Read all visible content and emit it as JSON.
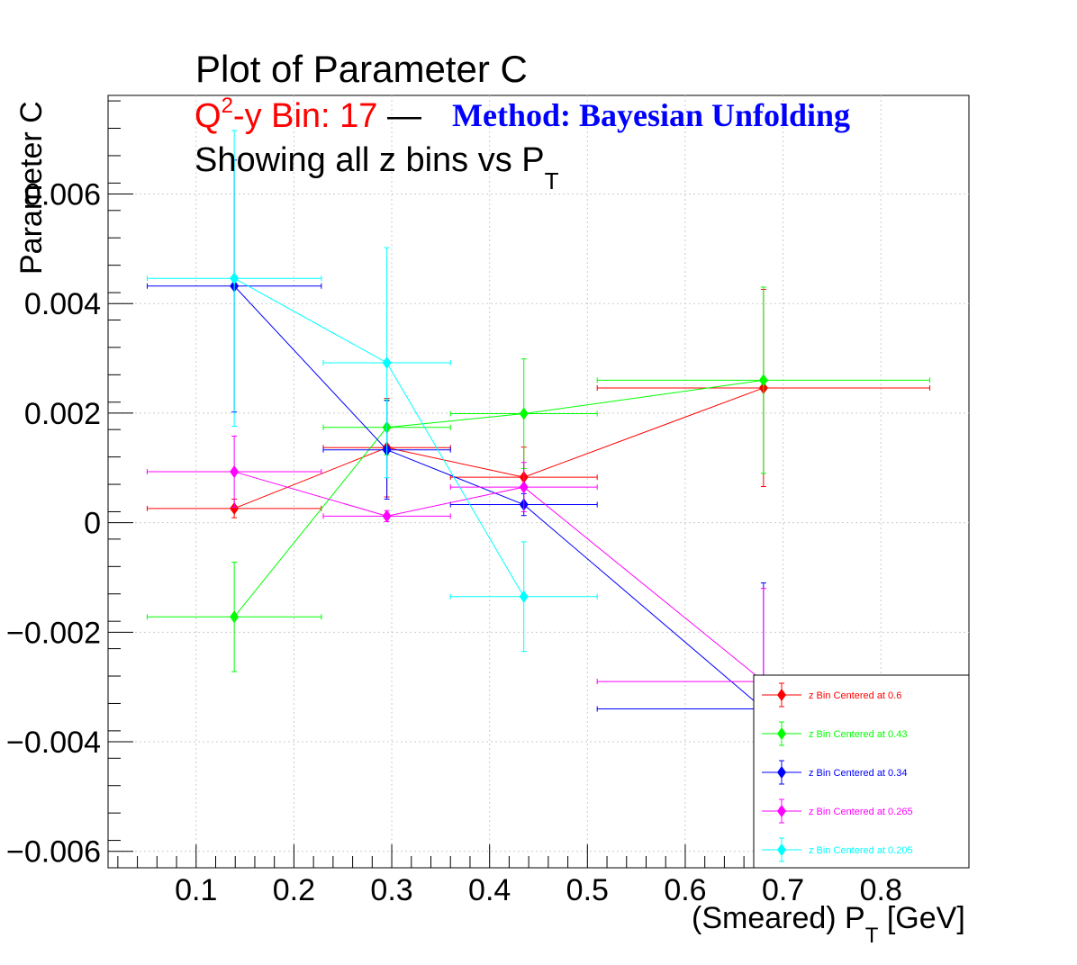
{
  "title": {
    "main": "Plot of Parameter C",
    "q2_prefix": "Q",
    "q2_sup": "2",
    "bin_text": "-y Bin: 17",
    "dash": "—",
    "method": "Method: Bayesian Unfolding",
    "showing": "Showing all z bins vs P",
    "showing_sub": "T"
  },
  "colors": {
    "bin_text": "#ff0000",
    "method": "#0000ff",
    "main": "#000000"
  },
  "axes": {
    "xlabel_pre": "(Smeared) P",
    "xlabel_sub": "T",
    "xlabel_post": " [GeV]",
    "ylabel": "Parameter C"
  },
  "chart_data": {
    "type": "scatter",
    "title": "Plot of Parameter C",
    "xlabel": "(Smeared) P_T [GeV]",
    "ylabel": "Parameter C",
    "xlim": [
      0.01,
      0.89
    ],
    "ylim": [
      -0.0063,
      0.0078
    ],
    "x_ticks": [
      0.1,
      0.2,
      0.3,
      0.4,
      0.5,
      0.6,
      0.7,
      0.8
    ],
    "x_tick_labels": [
      "0.1",
      "0.2",
      "0.3",
      "0.4",
      "0.5",
      "0.6",
      "0.7",
      "0.8"
    ],
    "y_ticks": [
      -0.006,
      -0.004,
      -0.002,
      0,
      0.002,
      0.004,
      0.006
    ],
    "y_tick_labels": [
      "−0.006",
      "−0.004",
      "−0.002",
      "0",
      "0.002",
      "0.004",
      "0.006"
    ],
    "grid": true,
    "legend_position": "bottom-right",
    "series": [
      {
        "name": "z Bin Centered at 0.6",
        "color": "#ff0000",
        "x": [
          0.139,
          0.295,
          0.435,
          0.68
        ],
        "xerr_low": [
          0.089,
          0.065,
          0.075,
          0.17
        ],
        "xerr_high": [
          0.089,
          0.065,
          0.075,
          0.17
        ],
        "y": [
          0.00026,
          0.00137,
          0.00083,
          0.00246
        ],
        "yerr": [
          0.00017,
          0.0009,
          0.00055,
          0.0018
        ]
      },
      {
        "name": "z Bin Centered at 0.43",
        "color": "#00ff00",
        "x": [
          0.139,
          0.295,
          0.435,
          0.68
        ],
        "xerr_low": [
          0.089,
          0.065,
          0.075,
          0.17
        ],
        "xerr_high": [
          0.089,
          0.065,
          0.075,
          0.17
        ],
        "y": [
          -0.00172,
          0.00174,
          0.00199,
          0.0026
        ],
        "yerr": [
          0.001,
          0.0005,
          0.001,
          0.0017
        ]
      },
      {
        "name": "z Bin Centered at 0.34",
        "color": "#0000ff",
        "x": [
          0.139,
          0.295,
          0.435,
          0.68
        ],
        "xerr_low": [
          0.089,
          0.065,
          0.075,
          0.17
        ],
        "xerr_high": [
          0.089,
          0.065,
          0.075,
          0.17
        ],
        "y": [
          0.00432,
          0.00133,
          0.00033,
          -0.0034
        ],
        "yerr": [
          0.0023,
          0.0009,
          0.0002,
          0.0023
        ]
      },
      {
        "name": "z Bin Centered at 0.265",
        "color": "#ff00ff",
        "x": [
          0.139,
          0.295,
          0.435,
          0.68
        ],
        "xerr_low": [
          0.089,
          0.065,
          0.075,
          0.17
        ],
        "xerr_high": [
          0.089,
          0.065,
          0.075,
          0.17
        ],
        "y": [
          0.00093,
          0.00012,
          0.00065,
          -0.0029
        ],
        "yerr": [
          0.00065,
          0.0001,
          0.00045,
          0.0017
        ]
      },
      {
        "name": "z Bin Centered at 0.205",
        "color": "#00ffff",
        "x": [
          0.139,
          0.295,
          0.435
        ],
        "xerr_low": [
          0.089,
          0.065,
          0.075
        ],
        "xerr_high": [
          0.089,
          0.065,
          0.075
        ],
        "y": [
          0.00446,
          0.00292,
          -0.00135
        ],
        "yerr": [
          0.0027,
          0.0021,
          0.001
        ]
      }
    ]
  }
}
